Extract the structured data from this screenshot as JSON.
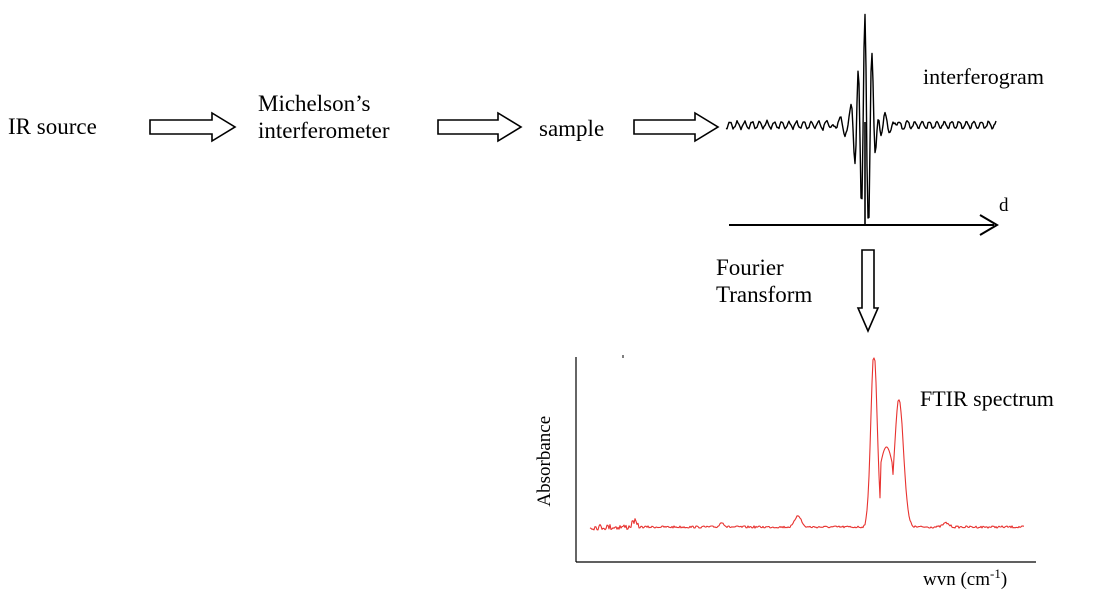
{
  "flow": {
    "ir_source": "IR source",
    "interferometer_line1": "Michelson’s",
    "interferometer_line2": "interferometer",
    "sample": "sample"
  },
  "interferogram": {
    "label": "interferogram",
    "axis_label": "d"
  },
  "transform": {
    "line1": "Fourier",
    "line2": "Transform"
  },
  "spectrum": {
    "label": "FTIR spectrum",
    "y_axis_label": "Absorbance",
    "x_axis_label_text": "wvn (cm",
    "x_axis_label_sup": "-1",
    "x_axis_label_close": ")",
    "line_color": "#e8322f"
  },
  "colors": {
    "ink": "#000000",
    "spectrum": "#e8322f"
  }
}
